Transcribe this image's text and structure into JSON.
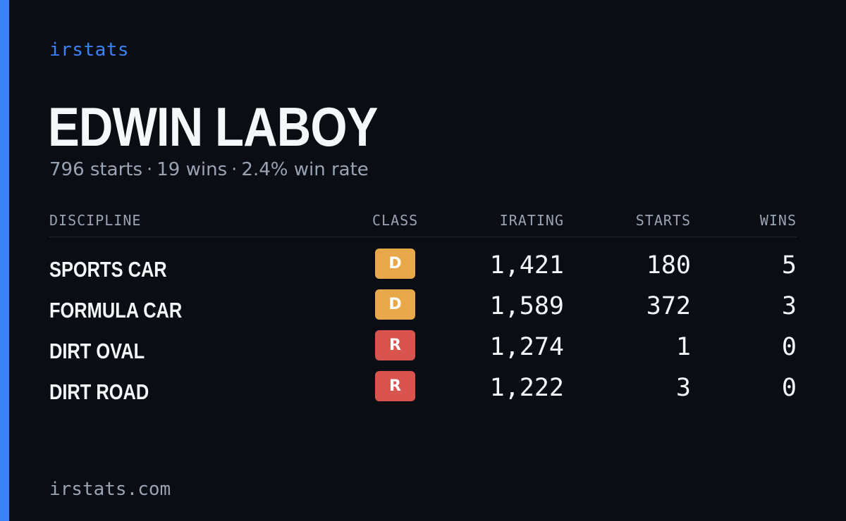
{
  "brand": "irstats",
  "driver": {
    "name": "EDWIN LABOY",
    "starts_text": "796 starts",
    "wins_text": "19 wins",
    "win_rate_text": "2.4% win rate",
    "separator": "·"
  },
  "table": {
    "headers": {
      "discipline": "DISCIPLINE",
      "class": "CLASS",
      "irating": "IRATING",
      "starts": "STARTS",
      "wins": "WINS"
    },
    "rows": [
      {
        "discipline": "SPORTS CAR",
        "class": "D",
        "class_color": "#e8a84a",
        "irating": "1,421",
        "starts": "180",
        "wins": "5"
      },
      {
        "discipline": "FORMULA CAR",
        "class": "D",
        "class_color": "#e8a84a",
        "irating": "1,589",
        "starts": "372",
        "wins": "3"
      },
      {
        "discipline": "DIRT OVAL",
        "class": "R",
        "class_color": "#d9534f",
        "irating": "1,274",
        "starts": "1",
        "wins": "0"
      },
      {
        "discipline": "DIRT ROAD",
        "class": "R",
        "class_color": "#d9534f",
        "irating": "1,222",
        "starts": "3",
        "wins": "0"
      }
    ]
  },
  "colors": {
    "background": "#0a0d14",
    "accent": "#3b82f6",
    "muted_text": "#9aa3b2",
    "primary_text": "#f5f7fb"
  },
  "footer": "irstats.com"
}
